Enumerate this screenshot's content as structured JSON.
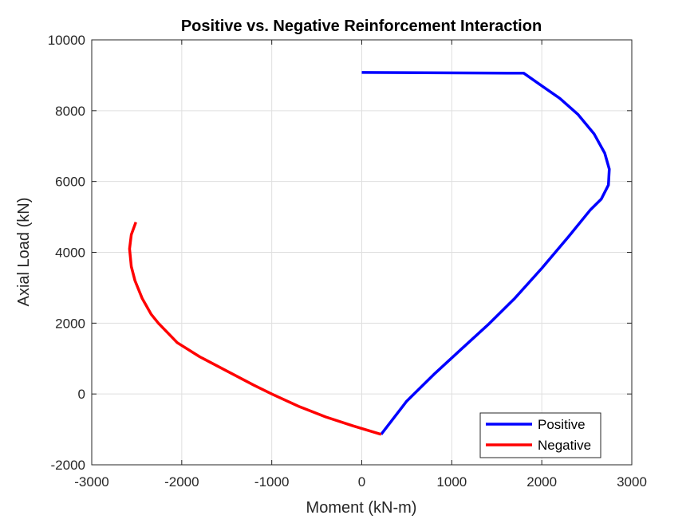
{
  "chart_data": {
    "type": "line",
    "title": "Positive vs. Negative Reinforcement Interaction",
    "xlabel": "Moment (kN-m)",
    "ylabel": "Axial Load (kN)",
    "xlim": [
      -3000,
      3000
    ],
    "ylim": [
      -2000,
      10000
    ],
    "xticks": [
      -3000,
      -2000,
      -1000,
      0,
      1000,
      2000,
      3000
    ],
    "yticks": [
      -2000,
      0,
      2000,
      4000,
      6000,
      8000,
      10000
    ],
    "xtick_labels": [
      "-3000",
      "-2000",
      "-1000",
      "0",
      "1000",
      "2000",
      "3000"
    ],
    "ytick_labels": [
      "-2000",
      "0",
      "2000",
      "4000",
      "6000",
      "8000",
      "10000"
    ],
    "grid": true,
    "legend_position": "bottom-right",
    "series": [
      {
        "name": "Positive",
        "color": "#0000ff",
        "x": [
          0,
          1800,
          2000,
          2200,
          2400,
          2580,
          2700,
          2750,
          2740,
          2660,
          2540,
          2300,
          2000,
          1700,
          1400,
          1100,
          800,
          500,
          215
        ],
        "y": [
          9080,
          9060,
          8700,
          8350,
          7900,
          7350,
          6800,
          6350,
          5900,
          5500,
          5200,
          4450,
          3550,
          2700,
          1950,
          1250,
          550,
          -200,
          -1140
        ]
      },
      {
        "name": "Negative",
        "color": "#ff0000",
        "x": [
          -2510,
          -2560,
          -2580,
          -2560,
          -2520,
          -2440,
          -2340,
          -2260,
          -2050,
          -1800,
          -1500,
          -1200,
          -1000,
          -700,
          -400,
          -100,
          215
        ],
        "y": [
          4850,
          4500,
          4100,
          3600,
          3200,
          2700,
          2250,
          2000,
          1450,
          1050,
          650,
          250,
          0,
          -350,
          -650,
          -900,
          -1140
        ]
      }
    ]
  }
}
